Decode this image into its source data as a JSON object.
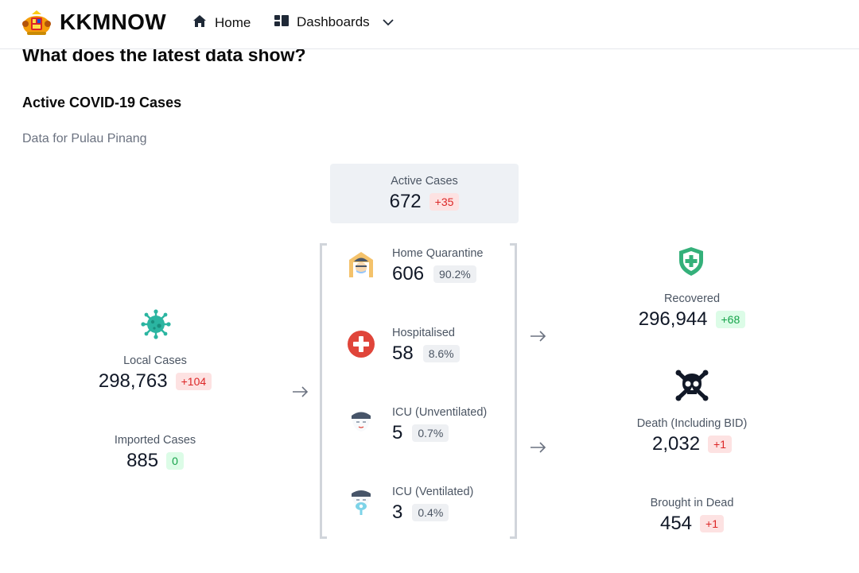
{
  "header": {
    "brand": "KKMNOW",
    "nav": {
      "home": "Home",
      "dashboards": "Dashboards"
    }
  },
  "page": {
    "headline": "What does the latest data show?",
    "section_title": "Active COVID-19 Cases",
    "subtitle": "Data for Pulau Pinang"
  },
  "active": {
    "label": "Active Cases",
    "value": "672",
    "delta": "+35"
  },
  "left": {
    "local": {
      "label": "Local Cases",
      "value": "298,763",
      "delta": "+104"
    },
    "imported": {
      "label": "Imported Cases",
      "value": "885",
      "delta": "0"
    }
  },
  "middle": {
    "home": {
      "label": "Home Quarantine",
      "value": "606",
      "pct": "90.2%"
    },
    "hosp": {
      "label": "Hospitalised",
      "value": "58",
      "pct": "8.6%"
    },
    "icu_unvent": {
      "label": "ICU (Unventilated)",
      "value": "5",
      "pct": "0.7%"
    },
    "icu_vent": {
      "label": "ICU (Ventilated)",
      "value": "3",
      "pct": "0.4%"
    }
  },
  "right": {
    "recovered": {
      "label": "Recovered",
      "value": "296,944",
      "delta": "+68"
    },
    "death": {
      "label": "Death (Including BID)",
      "value": "2,032",
      "delta": "+1"
    },
    "bid": {
      "label": "Brought in Dead",
      "value": "454",
      "delta": "+1"
    }
  },
  "colors": {
    "positive_bg": "#dcfce7",
    "positive_text": "#16a34a",
    "negative_bg": "#fde2e2",
    "negative_text": "#dc2626",
    "neutral_bg": "#eef0f3"
  },
  "icons": {
    "logo": "coat-of-arms",
    "home_nav": "house-icon",
    "dashboards_nav": "dashboard-icon",
    "local": "virus-icon",
    "home_quarantine": "home-quarantine-icon",
    "hospitalised": "red-cross-icon",
    "icu_unventilated": "patient-icon",
    "icu_ventilated": "ventilated-patient-icon",
    "recovered": "shield-plus-icon",
    "death": "skull-crossbones-icon"
  }
}
